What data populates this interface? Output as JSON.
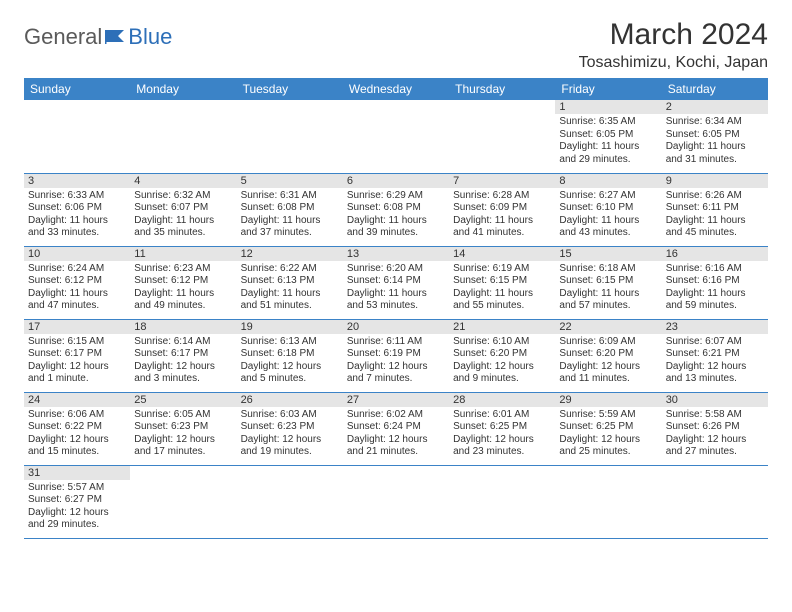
{
  "logo": {
    "general": "General",
    "blue": "Blue"
  },
  "title": "March 2024",
  "location": "Tosashimizu, Kochi, Japan",
  "colors": {
    "header_bg": "#3b83c7",
    "header_text": "#ffffff",
    "daynum_bg": "#e5e5e5",
    "cell_border": "#3b83c7",
    "text": "#333333",
    "logo_gray": "#5a5a5a",
    "logo_blue": "#2d6fb8"
  },
  "weekdays": [
    "Sunday",
    "Monday",
    "Tuesday",
    "Wednesday",
    "Thursday",
    "Friday",
    "Saturday"
  ],
  "weeks": [
    [
      null,
      null,
      null,
      null,
      null,
      {
        "n": "1",
        "sr": "Sunrise: 6:35 AM",
        "ss": "Sunset: 6:05 PM",
        "dl1": "Daylight: 11 hours",
        "dl2": "and 29 minutes."
      },
      {
        "n": "2",
        "sr": "Sunrise: 6:34 AM",
        "ss": "Sunset: 6:05 PM",
        "dl1": "Daylight: 11 hours",
        "dl2": "and 31 minutes."
      }
    ],
    [
      {
        "n": "3",
        "sr": "Sunrise: 6:33 AM",
        "ss": "Sunset: 6:06 PM",
        "dl1": "Daylight: 11 hours",
        "dl2": "and 33 minutes."
      },
      {
        "n": "4",
        "sr": "Sunrise: 6:32 AM",
        "ss": "Sunset: 6:07 PM",
        "dl1": "Daylight: 11 hours",
        "dl2": "and 35 minutes."
      },
      {
        "n": "5",
        "sr": "Sunrise: 6:31 AM",
        "ss": "Sunset: 6:08 PM",
        "dl1": "Daylight: 11 hours",
        "dl2": "and 37 minutes."
      },
      {
        "n": "6",
        "sr": "Sunrise: 6:29 AM",
        "ss": "Sunset: 6:08 PM",
        "dl1": "Daylight: 11 hours",
        "dl2": "and 39 minutes."
      },
      {
        "n": "7",
        "sr": "Sunrise: 6:28 AM",
        "ss": "Sunset: 6:09 PM",
        "dl1": "Daylight: 11 hours",
        "dl2": "and 41 minutes."
      },
      {
        "n": "8",
        "sr": "Sunrise: 6:27 AM",
        "ss": "Sunset: 6:10 PM",
        "dl1": "Daylight: 11 hours",
        "dl2": "and 43 minutes."
      },
      {
        "n": "9",
        "sr": "Sunrise: 6:26 AM",
        "ss": "Sunset: 6:11 PM",
        "dl1": "Daylight: 11 hours",
        "dl2": "and 45 minutes."
      }
    ],
    [
      {
        "n": "10",
        "sr": "Sunrise: 6:24 AM",
        "ss": "Sunset: 6:12 PM",
        "dl1": "Daylight: 11 hours",
        "dl2": "and 47 minutes."
      },
      {
        "n": "11",
        "sr": "Sunrise: 6:23 AM",
        "ss": "Sunset: 6:12 PM",
        "dl1": "Daylight: 11 hours",
        "dl2": "and 49 minutes."
      },
      {
        "n": "12",
        "sr": "Sunrise: 6:22 AM",
        "ss": "Sunset: 6:13 PM",
        "dl1": "Daylight: 11 hours",
        "dl2": "and 51 minutes."
      },
      {
        "n": "13",
        "sr": "Sunrise: 6:20 AM",
        "ss": "Sunset: 6:14 PM",
        "dl1": "Daylight: 11 hours",
        "dl2": "and 53 minutes."
      },
      {
        "n": "14",
        "sr": "Sunrise: 6:19 AM",
        "ss": "Sunset: 6:15 PM",
        "dl1": "Daylight: 11 hours",
        "dl2": "and 55 minutes."
      },
      {
        "n": "15",
        "sr": "Sunrise: 6:18 AM",
        "ss": "Sunset: 6:15 PM",
        "dl1": "Daylight: 11 hours",
        "dl2": "and 57 minutes."
      },
      {
        "n": "16",
        "sr": "Sunrise: 6:16 AM",
        "ss": "Sunset: 6:16 PM",
        "dl1": "Daylight: 11 hours",
        "dl2": "and 59 minutes."
      }
    ],
    [
      {
        "n": "17",
        "sr": "Sunrise: 6:15 AM",
        "ss": "Sunset: 6:17 PM",
        "dl1": "Daylight: 12 hours",
        "dl2": "and 1 minute."
      },
      {
        "n": "18",
        "sr": "Sunrise: 6:14 AM",
        "ss": "Sunset: 6:17 PM",
        "dl1": "Daylight: 12 hours",
        "dl2": "and 3 minutes."
      },
      {
        "n": "19",
        "sr": "Sunrise: 6:13 AM",
        "ss": "Sunset: 6:18 PM",
        "dl1": "Daylight: 12 hours",
        "dl2": "and 5 minutes."
      },
      {
        "n": "20",
        "sr": "Sunrise: 6:11 AM",
        "ss": "Sunset: 6:19 PM",
        "dl1": "Daylight: 12 hours",
        "dl2": "and 7 minutes."
      },
      {
        "n": "21",
        "sr": "Sunrise: 6:10 AM",
        "ss": "Sunset: 6:20 PM",
        "dl1": "Daylight: 12 hours",
        "dl2": "and 9 minutes."
      },
      {
        "n": "22",
        "sr": "Sunrise: 6:09 AM",
        "ss": "Sunset: 6:20 PM",
        "dl1": "Daylight: 12 hours",
        "dl2": "and 11 minutes."
      },
      {
        "n": "23",
        "sr": "Sunrise: 6:07 AM",
        "ss": "Sunset: 6:21 PM",
        "dl1": "Daylight: 12 hours",
        "dl2": "and 13 minutes."
      }
    ],
    [
      {
        "n": "24",
        "sr": "Sunrise: 6:06 AM",
        "ss": "Sunset: 6:22 PM",
        "dl1": "Daylight: 12 hours",
        "dl2": "and 15 minutes."
      },
      {
        "n": "25",
        "sr": "Sunrise: 6:05 AM",
        "ss": "Sunset: 6:23 PM",
        "dl1": "Daylight: 12 hours",
        "dl2": "and 17 minutes."
      },
      {
        "n": "26",
        "sr": "Sunrise: 6:03 AM",
        "ss": "Sunset: 6:23 PM",
        "dl1": "Daylight: 12 hours",
        "dl2": "and 19 minutes."
      },
      {
        "n": "27",
        "sr": "Sunrise: 6:02 AM",
        "ss": "Sunset: 6:24 PM",
        "dl1": "Daylight: 12 hours",
        "dl2": "and 21 minutes."
      },
      {
        "n": "28",
        "sr": "Sunrise: 6:01 AM",
        "ss": "Sunset: 6:25 PM",
        "dl1": "Daylight: 12 hours",
        "dl2": "and 23 minutes."
      },
      {
        "n": "29",
        "sr": "Sunrise: 5:59 AM",
        "ss": "Sunset: 6:25 PM",
        "dl1": "Daylight: 12 hours",
        "dl2": "and 25 minutes."
      },
      {
        "n": "30",
        "sr": "Sunrise: 5:58 AM",
        "ss": "Sunset: 6:26 PM",
        "dl1": "Daylight: 12 hours",
        "dl2": "and 27 minutes."
      }
    ],
    [
      {
        "n": "31",
        "sr": "Sunrise: 5:57 AM",
        "ss": "Sunset: 6:27 PM",
        "dl1": "Daylight: 12 hours",
        "dl2": "and 29 minutes."
      },
      null,
      null,
      null,
      null,
      null,
      null
    ]
  ]
}
